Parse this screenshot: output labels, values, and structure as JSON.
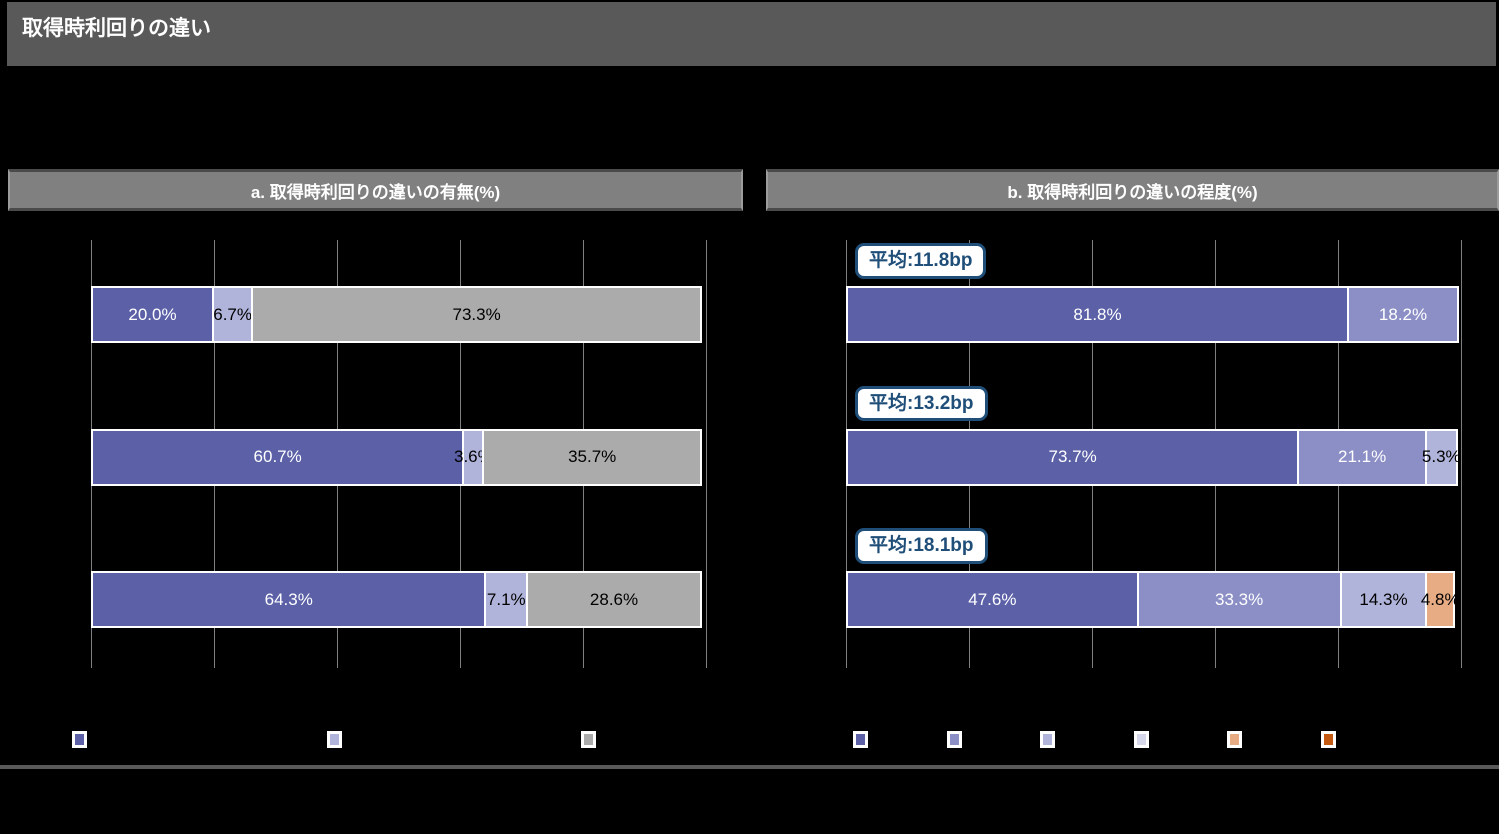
{
  "page": {
    "title": "取得時利回りの違い"
  },
  "colors": {
    "background": "#000000",
    "title_bar": "#595959",
    "panel_header_fill": "#808080",
    "gridline": "#7f7f7f",
    "bar_border": "#ffffff",
    "divider": "#595959",
    "badge_border": "#1f4e79",
    "badge_text": "#1f4e79",
    "badge_fill": "#ffffff",
    "purple_dark": "#5b60a7",
    "purple_mid": "#8b8fc6",
    "purple_light": "#b1b4da",
    "purple_xlight": "#d6d7eb",
    "orange_light": "#e8ac84",
    "orange_dark": "#c45911",
    "gray": "#ababab"
  },
  "chart_data": [
    {
      "type": "bar",
      "orientation": "horizontal",
      "stacked": true,
      "title": "a. 取得時利回りの違いの有無(%)",
      "xlabel": "",
      "ylabel": "",
      "xlim": [
        0,
        100
      ],
      "grid": true,
      "gridline_interval": 20,
      "legend_position": "bottom",
      "legend": [
        {
          "color_key": "purple_dark",
          "label": ""
        },
        {
          "color_key": "purple_light",
          "label": ""
        },
        {
          "color_key": "gray",
          "label": ""
        }
      ],
      "rows": [
        {
          "segments": [
            {
              "value": 20.0,
              "label": "20.0%",
              "color_key": "purple_dark",
              "label_color": "#ffffff"
            },
            {
              "value": 6.7,
              "label": "6.7%",
              "color_key": "purple_light",
              "label_color": "#000000"
            },
            {
              "value": 73.3,
              "label": "73.3%",
              "color_key": "gray",
              "label_color": "#000000"
            }
          ]
        },
        {
          "segments": [
            {
              "value": 60.7,
              "label": "60.7%",
              "color_key": "purple_dark",
              "label_color": "#ffffff"
            },
            {
              "value": 3.6,
              "label": "3.6%",
              "color_key": "purple_light",
              "label_color": "#000000"
            },
            {
              "value": 35.7,
              "label": "35.7%",
              "color_key": "gray",
              "label_color": "#000000"
            }
          ]
        },
        {
          "segments": [
            {
              "value": 64.3,
              "label": "64.3%",
              "color_key": "purple_dark",
              "label_color": "#ffffff"
            },
            {
              "value": 7.1,
              "label": "7.1%",
              "color_key": "purple_light",
              "label_color": "#000000"
            },
            {
              "value": 28.6,
              "label": "28.6%",
              "color_key": "gray",
              "label_color": "#000000"
            }
          ]
        }
      ]
    },
    {
      "type": "bar",
      "orientation": "horizontal",
      "stacked": true,
      "title": "b. 取得時利回りの違いの程度(%)",
      "xlabel": "",
      "ylabel": "",
      "xlim": [
        0,
        100
      ],
      "grid": true,
      "gridline_interval": 20,
      "legend_position": "bottom",
      "legend": [
        {
          "color_key": "purple_dark",
          "label": ""
        },
        {
          "color_key": "purple_mid",
          "label": ""
        },
        {
          "color_key": "purple_light",
          "label": ""
        },
        {
          "color_key": "purple_xlight",
          "label": ""
        },
        {
          "color_key": "orange_light",
          "label": ""
        },
        {
          "color_key": "orange_dark",
          "label": ""
        }
      ],
      "rows": [
        {
          "mean_label": "平均:11.8bp",
          "segments": [
            {
              "value": 81.8,
              "label": "81.8%",
              "color_key": "purple_dark",
              "label_color": "#ffffff"
            },
            {
              "value": 18.2,
              "label": "18.2%",
              "color_key": "purple_mid",
              "label_color": "#ffffff"
            }
          ]
        },
        {
          "mean_label": "平均:13.2bp",
          "segments": [
            {
              "value": 73.7,
              "label": "73.7%",
              "color_key": "purple_dark",
              "label_color": "#ffffff"
            },
            {
              "value": 21.1,
              "label": "21.1%",
              "color_key": "purple_mid",
              "label_color": "#ffffff"
            },
            {
              "value": 5.3,
              "label": "5.3%",
              "color_key": "purple_light",
              "label_color": "#000000"
            }
          ]
        },
        {
          "mean_label": "平均:18.1bp",
          "segments": [
            {
              "value": 47.6,
              "label": "47.6%",
              "color_key": "purple_dark",
              "label_color": "#ffffff"
            },
            {
              "value": 33.3,
              "label": "33.3%",
              "color_key": "purple_mid",
              "label_color": "#ffffff"
            },
            {
              "value": 14.3,
              "label": "14.3%",
              "color_key": "purple_light",
              "label_color": "#000000"
            },
            {
              "value": 4.8,
              "label": "4.8%",
              "color_key": "orange_light",
              "label_color": "#000000"
            }
          ]
        }
      ]
    }
  ]
}
